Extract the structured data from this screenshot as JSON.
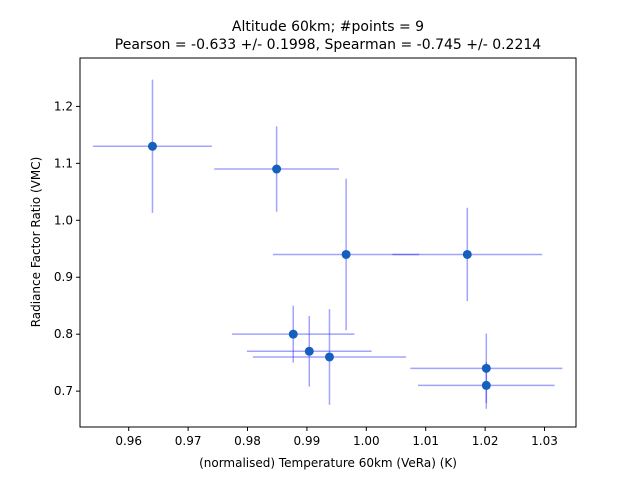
{
  "chart_data": {
    "type": "scatter",
    "title_line1": "Altitude 60km;  #points =  9",
    "title_line2": "Pearson = -0.633 +/-  0.1998, Spearman = -0.745 +/-  0.2214",
    "xlabel": "(normalised) Temperature 60km (VeRa) (K)",
    "ylabel": "Radiance Factor Ratio (VMC)",
    "xlim": [
      0.9518,
      1.0353
    ],
    "ylim": [
      0.637,
      1.285
    ],
    "xticks": [
      {
        "value": 0.96,
        "label": "0.96"
      },
      {
        "value": 0.97,
        "label": "0.97"
      },
      {
        "value": 0.98,
        "label": "0.98"
      },
      {
        "value": 0.99,
        "label": "0.99"
      },
      {
        "value": 1.0,
        "label": "1.00"
      },
      {
        "value": 1.01,
        "label": "1.01"
      },
      {
        "value": 1.02,
        "label": "1.02"
      },
      {
        "value": 1.03,
        "label": "1.03"
      }
    ],
    "yticks": [
      {
        "value": 0.7,
        "label": "0.7"
      },
      {
        "value": 0.8,
        "label": "0.8"
      },
      {
        "value": 0.9,
        "label": "0.9"
      },
      {
        "value": 1.0,
        "label": "1.0"
      },
      {
        "value": 1.1,
        "label": "1.1"
      },
      {
        "value": 1.2,
        "label": "1.2"
      }
    ],
    "grid": false,
    "point_color": "#1560bd",
    "errorbar_color": "#3333ff",
    "points": [
      {
        "x": 0.964,
        "y": 1.13,
        "xerr": 0.01,
        "yerr": 0.117
      },
      {
        "x": 0.9849,
        "y": 1.09,
        "xerr": 0.0105,
        "yerr": 0.075
      },
      {
        "x": 0.9966,
        "y": 0.94,
        "xerr": 0.0123,
        "yerr": 0.133
      },
      {
        "x": 1.017,
        "y": 0.94,
        "xerr": 0.0126,
        "yerr": 0.082
      },
      {
        "x": 0.9877,
        "y": 0.8,
        "xerr": 0.0103,
        "yerr": 0.05
      },
      {
        "x": 0.9904,
        "y": 0.77,
        "xerr": 0.0105,
        "yerr": 0.062
      },
      {
        "x": 0.9938,
        "y": 0.76,
        "xerr": 0.0129,
        "yerr": 0.084
      },
      {
        "x": 1.0202,
        "y": 0.74,
        "xerr": 0.0128,
        "yerr": 0.061
      },
      {
        "x": 1.0202,
        "y": 0.71,
        "xerr": 0.0115,
        "yerr": 0.041
      }
    ]
  }
}
